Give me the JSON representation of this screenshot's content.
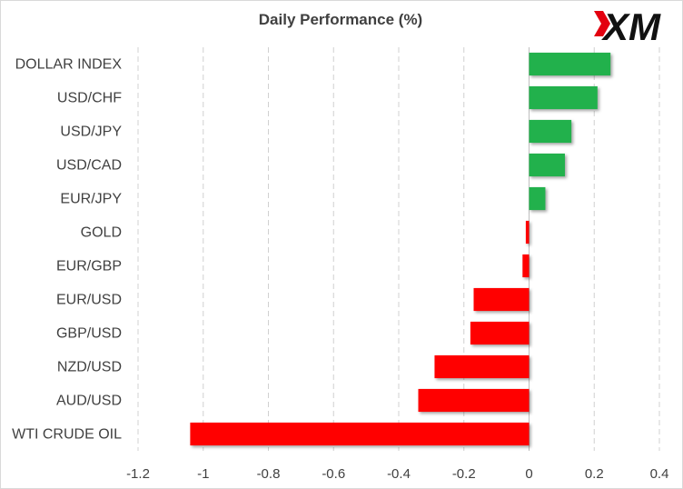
{
  "logo": {
    "text": "XM",
    "accent_color": "#e3000f",
    "text_color": "#111111"
  },
  "chart_data": {
    "type": "bar",
    "orientation": "horizontal",
    "title": "Daily Performance  (%)",
    "categories": [
      "DOLLAR INDEX",
      "USD/CHF",
      "USD/JPY",
      "USD/CAD",
      "EUR/JPY",
      "GOLD",
      "EUR/GBP",
      "EUR/USD",
      "GBP/USD",
      "NZD/USD",
      "AUD/USD",
      "WTI CRUDE OIL"
    ],
    "values": [
      0.25,
      0.21,
      0.13,
      0.11,
      0.05,
      -0.01,
      -0.02,
      -0.17,
      -0.18,
      -0.29,
      -0.34,
      -1.04
    ],
    "xlim": [
      -1.2,
      0.4
    ],
    "xticks": [
      -1.2,
      -1,
      -0.8,
      -0.6,
      -0.4,
      -0.2,
      0,
      0.2,
      0.4
    ],
    "xtick_labels": [
      "-1.2",
      "-1",
      "-0.8",
      "-0.6",
      "-0.4",
      "-0.2",
      "0",
      "0.2",
      "0.4"
    ],
    "grid": "vertical, dashed",
    "colors": {
      "positive": "#22b14c",
      "negative": "#ff0000",
      "grid": "#d0d0d0",
      "axis": "#bfbfbf"
    },
    "xlabel": "",
    "ylabel": ""
  }
}
